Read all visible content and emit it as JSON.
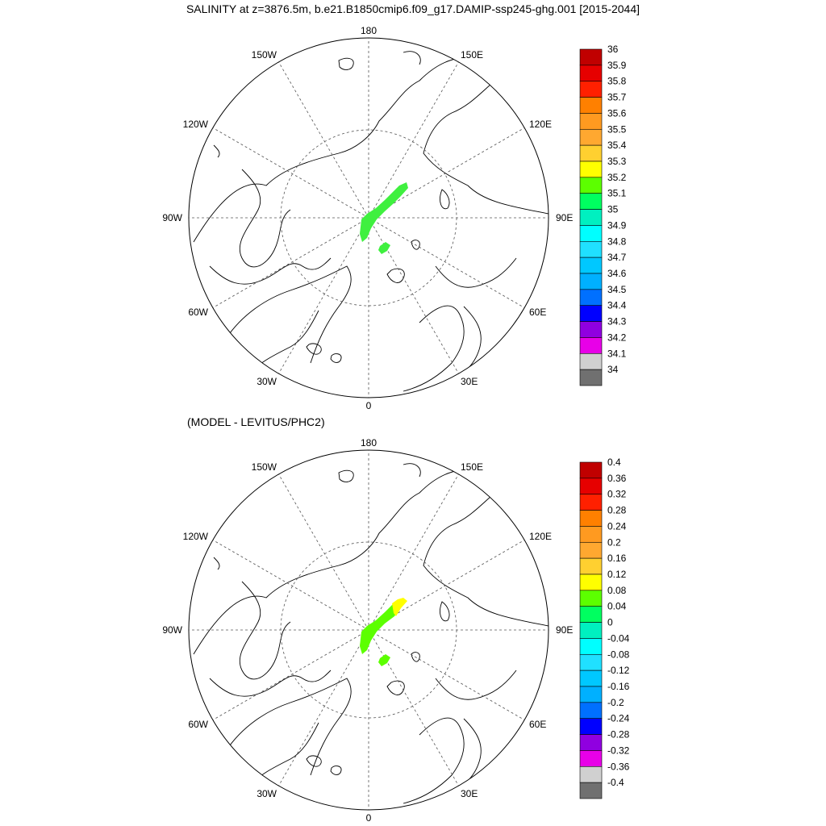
{
  "title": "SALINITY at z=3876.5m, b.e21.B1850cmip6.f09_g17.DAMIP-ssp245-ghg.001 [2015-2044]",
  "subtitle": "(MODEL - LEVITUS/PHC2)",
  "lon_labels": {
    "top": "180",
    "bottom": "0",
    "left": "90W",
    "right": "90E",
    "upper_left_1": "150W",
    "upper_left_2": "120W",
    "upper_right_1": "150E",
    "upper_right_2": "120E",
    "lower_left_1": "60W",
    "lower_left_2": "30W",
    "lower_right_1": "60E",
    "lower_right_2": "30E"
  },
  "map_top": {
    "name": "salinity",
    "colorbar": {
      "labels": [
        "36",
        "35.9",
        "35.8",
        "35.7",
        "35.6",
        "35.5",
        "35.4",
        "35.3",
        "35.2",
        "35.1",
        "35",
        "34.9",
        "34.8",
        "34.7",
        "34.6",
        "34.5",
        "34.4",
        "34.3",
        "34.2",
        "34.1",
        "34"
      ],
      "colors": [
        "#c00000",
        "#e60000",
        "#ff2000",
        "#ff8000",
        "#ff9a20",
        "#ffa830",
        "#ffd030",
        "#ffff00",
        "#5cff00",
        "#00ff60",
        "#00f0c0",
        "#00ffff",
        "#20e0ff",
        "#00c8ff",
        "#00b0ff",
        "#0070ff",
        "#0000ff",
        "#9000e0",
        "#e800e8",
        "#d0d0d0",
        "#707070"
      ]
    },
    "field_color": "#3ff03f"
  },
  "map_bottom": {
    "name": "difference",
    "colorbar": {
      "labels": [
        "0.4",
        "0.36",
        "0.32",
        "0.28",
        "0.24",
        "0.2",
        "0.16",
        "0.12",
        "0.08",
        "0.04",
        "0",
        "-0.04",
        "-0.08",
        "-0.12",
        "-0.16",
        "-0.2",
        "-0.24",
        "-0.28",
        "-0.32",
        "-0.36",
        "-0.4"
      ],
      "colors": [
        "#c00000",
        "#e60000",
        "#ff2000",
        "#ff8000",
        "#ff9a20",
        "#ffa830",
        "#ffd030",
        "#ffff00",
        "#5cff00",
        "#00ff60",
        "#00f0c0",
        "#00ffff",
        "#20e0ff",
        "#00c8ff",
        "#00b0ff",
        "#0070ff",
        "#0000ff",
        "#9000e0",
        "#e800e8",
        "#d0d0d0",
        "#707070"
      ]
    },
    "field_color": "#5cff00",
    "highlight_color": "#ffff00"
  }
}
